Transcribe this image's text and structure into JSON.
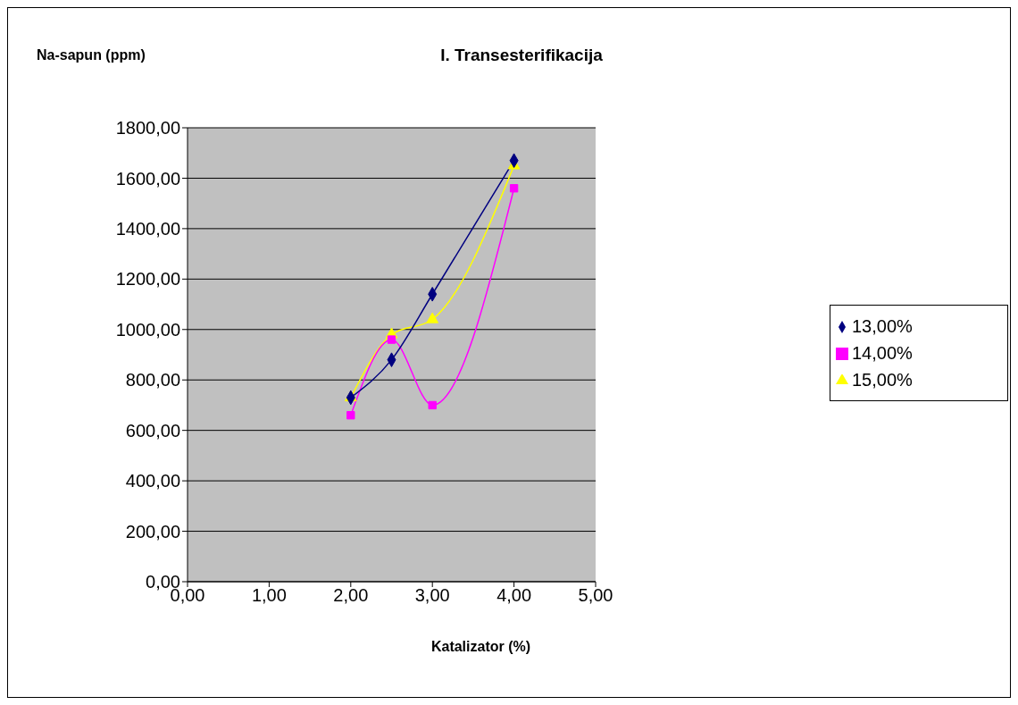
{
  "chart_data": {
    "type": "line",
    "title": "I. Transesterifikacija",
    "xlabel": "Katalizator (%)",
    "ylabel": "Na-sapun (ppm)",
    "x": [
      2,
      2.5,
      3,
      4
    ],
    "series": [
      {
        "name": "13,00%",
        "color": "#000080",
        "marker": "diamond",
        "values": [
          730,
          880,
          1140,
          1670
        ]
      },
      {
        "name": "14,00%",
        "color": "#ff00ff",
        "marker": "square",
        "values": [
          660,
          960,
          700,
          1560
        ]
      },
      {
        "name": "15,00%",
        "color": "#ffff00",
        "marker": "triangle",
        "values": [
          730,
          980,
          1040,
          1650
        ]
      }
    ],
    "xlim": [
      0,
      5
    ],
    "xticks": [
      {
        "value": 0,
        "label": "0,00"
      },
      {
        "value": 1,
        "label": "1,00"
      },
      {
        "value": 2,
        "label": "2,00"
      },
      {
        "value": 3,
        "label": "3,00"
      },
      {
        "value": 4,
        "label": "4,00"
      },
      {
        "value": 5,
        "label": "5,00"
      }
    ],
    "ylim": [
      0,
      1800
    ],
    "yticks": [
      {
        "value": 0,
        "label": "0,00"
      },
      {
        "value": 200,
        "label": "200,00"
      },
      {
        "value": 400,
        "label": "400,00"
      },
      {
        "value": 600,
        "label": "600,00"
      },
      {
        "value": 800,
        "label": "800,00"
      },
      {
        "value": 1000,
        "label": "1000,00"
      },
      {
        "value": 1200,
        "label": "1200,00"
      },
      {
        "value": 1400,
        "label": "1400,00"
      },
      {
        "value": 1600,
        "label": "1600,00"
      },
      {
        "value": 1800,
        "label": "1800,00"
      }
    ],
    "grid": "y",
    "legend": "right"
  }
}
